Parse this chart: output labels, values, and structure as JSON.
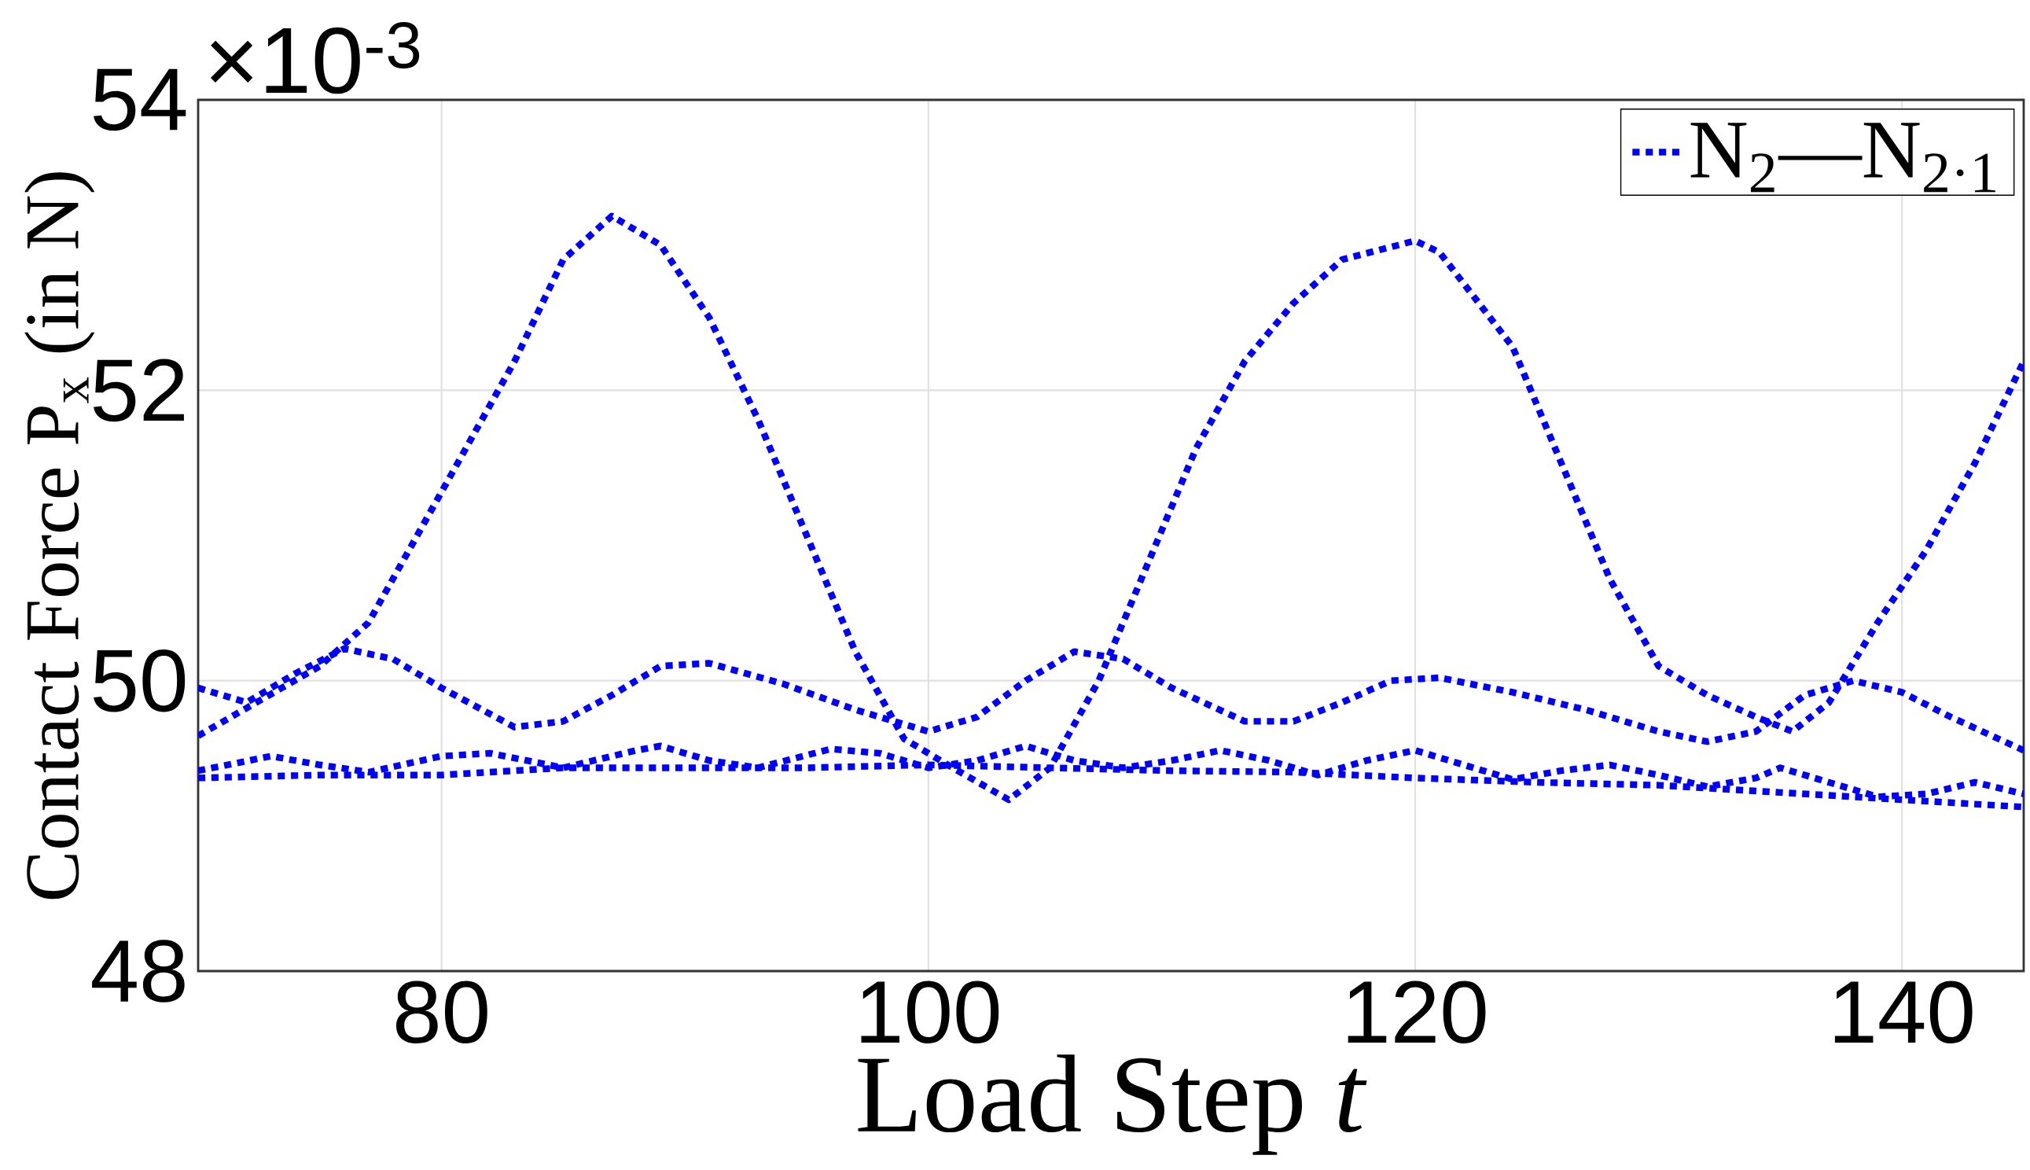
{
  "chart_data": {
    "type": "line",
    "xlabel": "Load Step *t*",
    "ylabel": "Contact Force P$_{x}$ (in N)",
    "annotations": [
      "×10$^{-3}$"
    ],
    "xlim": [
      70,
      145
    ],
    "ylim": [
      48,
      54
    ],
    "xticks": [
      80,
      100,
      120,
      140
    ],
    "yticks": [
      48,
      50,
      52,
      54
    ],
    "grid": true,
    "legend": "top right",
    "line_style": "dotted",
    "marker": "none",
    "series": [
      {
        "name": "N$_{2}$—N$_{2·1}$",
        "color": "#0000ff",
        "x": [
          70,
          75,
          77,
          80,
          83,
          85,
          87,
          89,
          91,
          93,
          95,
          97,
          99,
          101,
          103.3,
          105,
          107,
          109,
          111,
          113,
          115,
          117,
          120,
          121,
          124,
          126,
          128,
          130,
          132,
          134,
          135.5,
          137,
          139,
          141,
          143,
          145
        ],
        "values": [
          49.62,
          50.1,
          50.4,
          51.3,
          52.2,
          52.9,
          53.2,
          53.0,
          52.5,
          51.8,
          51.0,
          50.2,
          49.6,
          49.4,
          49.18,
          49.4,
          50.0,
          50.8,
          51.6,
          52.2,
          52.6,
          52.9,
          53.03,
          52.95,
          52.3,
          51.5,
          50.7,
          50.1,
          49.9,
          49.75,
          49.65,
          49.85,
          50.4,
          50.9,
          51.5,
          52.2
        ]
      },
      {
        "color": "#0000ff",
        "x": [
          70,
          72,
          74,
          76,
          78,
          80,
          83,
          85,
          87,
          89,
          91,
          94,
          97,
          100,
          102,
          104,
          106,
          108,
          110,
          113,
          115,
          117,
          119,
          121,
          124,
          127,
          130,
          132,
          134,
          136,
          138,
          140,
          142,
          145
        ],
        "values": [
          49.95,
          49.85,
          50.05,
          50.22,
          50.15,
          49.95,
          49.68,
          49.72,
          49.9,
          50.1,
          50.12,
          49.98,
          49.8,
          49.65,
          49.75,
          50.0,
          50.2,
          50.15,
          49.95,
          49.72,
          49.72,
          49.85,
          50.0,
          50.02,
          49.92,
          49.8,
          49.65,
          49.58,
          49.65,
          49.9,
          50.0,
          49.92,
          49.75,
          49.52
        ]
      },
      {
        "color": "#0000ff",
        "x": [
          70,
          73,
          75,
          77,
          80,
          82,
          85,
          88,
          89,
          91,
          93,
          96,
          98,
          100,
          102,
          104,
          106,
          108,
          110,
          112,
          114,
          116,
          118,
          120,
          122,
          124,
          126,
          128,
          130,
          132,
          134,
          135,
          137,
          139,
          141,
          143,
          145
        ],
        "values": [
          49.38,
          49.48,
          49.42,
          49.37,
          49.48,
          49.5,
          49.4,
          49.52,
          49.55,
          49.45,
          49.4,
          49.53,
          49.5,
          49.4,
          49.45,
          49.55,
          49.45,
          49.4,
          49.45,
          49.52,
          49.45,
          49.35,
          49.45,
          49.52,
          49.42,
          49.32,
          49.38,
          49.42,
          49.35,
          49.27,
          49.33,
          49.4,
          49.3,
          49.2,
          49.22,
          49.3,
          49.22
        ]
      },
      {
        "color": "#0000ff",
        "x": [
          70,
          75,
          80,
          85,
          90,
          95,
          100,
          105,
          110,
          115,
          120,
          125,
          130,
          135,
          140,
          145
        ],
        "values": [
          49.33,
          49.35,
          49.35,
          49.4,
          49.4,
          49.4,
          49.42,
          49.4,
          49.38,
          49.37,
          49.33,
          49.3,
          49.28,
          49.23,
          49.18,
          49.13
        ]
      }
    ]
  }
}
